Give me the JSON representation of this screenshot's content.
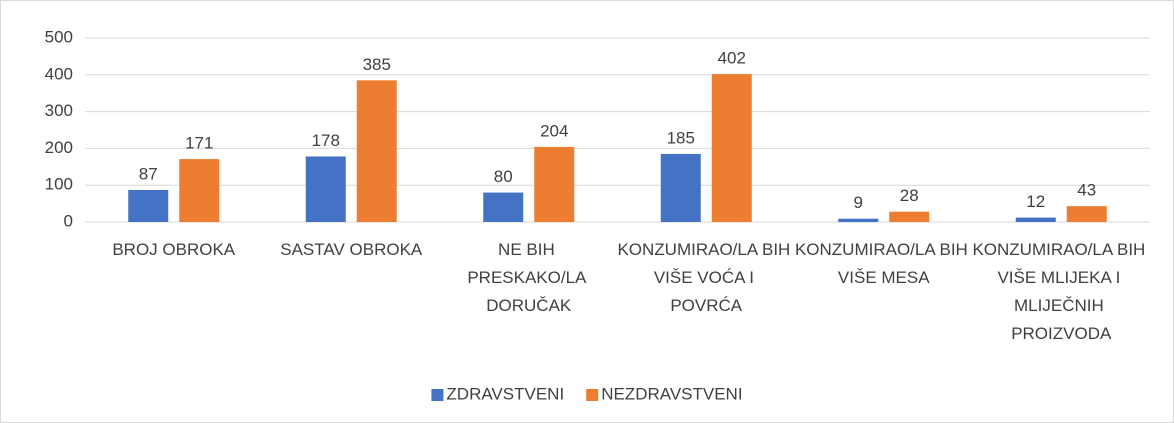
{
  "chart_data": {
    "type": "bar",
    "categories": [
      "BROJ OBROKA",
      "SASTAV OBROKA",
      "NE BIH PRESKAKO/LA DORUČAK",
      "KONZUMIRAO/LA BIH VIŠE VOĆA I POVRĆA",
      "KONZUMIRAO/LA BIH VIŠE MESA",
      "KONZUMIRAO/LA BIH VIŠE MLIJEKA I MLIJEČNIH PROIZVODA"
    ],
    "series": [
      {
        "name": "ZDRAVSTVENI",
        "color": "#4472c4",
        "values": [
          87,
          178,
          80,
          185,
          9,
          12
        ]
      },
      {
        "name": "NEZDRAVSTVENI",
        "color": "#ed7d31",
        "values": [
          171,
          385,
          204,
          402,
          28,
          43
        ]
      }
    ],
    "ylim": [
      0,
      500
    ],
    "yticks": [
      0,
      100,
      200,
      300,
      400,
      500
    ],
    "grid": true,
    "legend": "bottom"
  }
}
